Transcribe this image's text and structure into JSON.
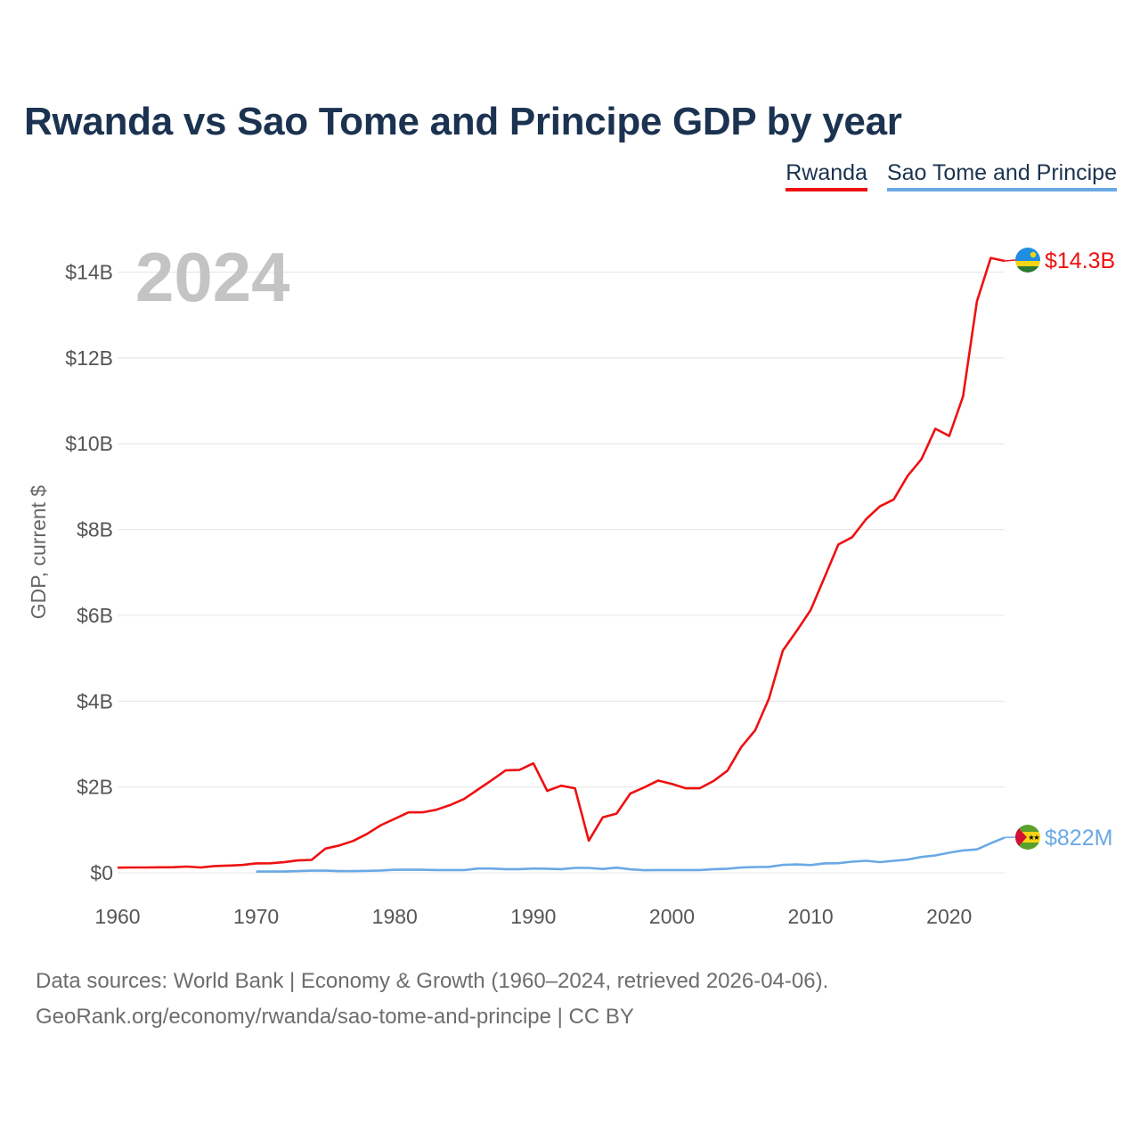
{
  "title": "Rwanda vs Sao Tome and Principe GDP by year",
  "colors": {
    "rwanda": "#ee1111",
    "stp": "#6aa9e6",
    "title": "#1b3350",
    "grid": "#e4e4e4",
    "year_label": "#c4c4c4"
  },
  "legend": [
    {
      "label": "Rwanda",
      "color": "#ee1111"
    },
    {
      "label": "Sao Tome and Principe",
      "color": "#6aa9e6"
    }
  ],
  "footer": {
    "line1": "Data sources: World Bank | Economy & Growth (1960–2024, retrieved 2026-04-06).",
    "line2": "GeoRank.org/economy/rwanda/sao-tome-and-principe | CC BY"
  },
  "chart_data": {
    "type": "line",
    "title": "Rwanda vs Sao Tome and Principe GDP by year",
    "year_label": "2024",
    "ylabel": "GDP, current $",
    "xlabel": "",
    "xlim": [
      1960,
      2024
    ],
    "ylim": [
      0,
      14.5
    ],
    "x_ticks": [
      1960,
      1970,
      1980,
      1990,
      2000,
      2010,
      2020
    ],
    "y_ticks": [
      {
        "value": 0,
        "label": "$0"
      },
      {
        "value": 2,
        "label": "$2B"
      },
      {
        "value": 4,
        "label": "$4B"
      },
      {
        "value": 6,
        "label": "$6B"
      },
      {
        "value": 8,
        "label": "$8B"
      },
      {
        "value": 10,
        "label": "$10B"
      },
      {
        "value": 12,
        "label": "$12B"
      },
      {
        "value": 14,
        "label": "$14B"
      }
    ],
    "grid": true,
    "series": [
      {
        "name": "Rwanda",
        "color": "#ee1111",
        "end_label": "$14.3B",
        "flag": "rwanda-flag-icon",
        "x": [
          1960,
          1961,
          1962,
          1963,
          1964,
          1965,
          1966,
          1967,
          1968,
          1969,
          1970,
          1971,
          1972,
          1973,
          1974,
          1975,
          1976,
          1977,
          1978,
          1979,
          1980,
          1981,
          1982,
          1983,
          1984,
          1985,
          1986,
          1987,
          1988,
          1989,
          1990,
          1991,
          1992,
          1993,
          1994,
          1995,
          1996,
          1997,
          1998,
          1999,
          2000,
          2001,
          2002,
          2003,
          2004,
          2005,
          2006,
          2007,
          2008,
          2009,
          2010,
          2011,
          2012,
          2013,
          2014,
          2015,
          2016,
          2017,
          2018,
          2019,
          2020,
          2021,
          2022,
          2023,
          2024
        ],
        "values": [
          0.12,
          0.125,
          0.125,
          0.128,
          0.13,
          0.146,
          0.125,
          0.158,
          0.168,
          0.182,
          0.22,
          0.222,
          0.246,
          0.288,
          0.3,
          0.565,
          0.637,
          0.744,
          0.907,
          1.11,
          1.26,
          1.41,
          1.41,
          1.47,
          1.58,
          1.72,
          1.94,
          2.16,
          2.39,
          2.4,
          2.55,
          1.91,
          2.03,
          1.97,
          0.75,
          1.29,
          1.38,
          1.85,
          1.99,
          2.15,
          2.07,
          1.97,
          1.97,
          2.14,
          2.38,
          2.93,
          3.32,
          4.06,
          5.18,
          5.64,
          6.12,
          6.88,
          7.65,
          7.82,
          8.24,
          8.54,
          8.7,
          9.25,
          9.64,
          10.35,
          10.18,
          11.1,
          13.32,
          14.33,
          14.26
        ]
      },
      {
        "name": "Sao Tome and Principe",
        "color": "#6aa9e6",
        "end_label": "$822M",
        "flag": "sao-tome-flag-icon",
        "x": [
          1970,
          1971,
          1972,
          1973,
          1974,
          1975,
          1976,
          1977,
          1978,
          1979,
          1980,
          1981,
          1982,
          1983,
          1984,
          1985,
          1986,
          1987,
          1988,
          1989,
          1990,
          1991,
          1992,
          1993,
          1994,
          1995,
          1996,
          1997,
          1998,
          1999,
          2000,
          2001,
          2002,
          2003,
          2004,
          2005,
          2006,
          2007,
          2008,
          2009,
          2010,
          2011,
          2012,
          2013,
          2014,
          2015,
          2016,
          2017,
          2018,
          2019,
          2020,
          2021,
          2022,
          2023,
          2024
        ],
        "values": [
          0.03,
          0.03,
          0.03,
          0.04,
          0.05,
          0.05,
          0.04,
          0.04,
          0.045,
          0.055,
          0.07,
          0.07,
          0.07,
          0.065,
          0.065,
          0.065,
          0.1,
          0.1,
          0.085,
          0.085,
          0.1,
          0.095,
          0.085,
          0.115,
          0.115,
          0.09,
          0.12,
          0.08,
          0.06,
          0.065,
          0.065,
          0.065,
          0.065,
          0.085,
          0.095,
          0.125,
          0.135,
          0.14,
          0.185,
          0.195,
          0.18,
          0.22,
          0.225,
          0.26,
          0.28,
          0.25,
          0.28,
          0.31,
          0.37,
          0.405,
          0.47,
          0.52,
          0.545,
          0.69,
          0.822
        ]
      }
    ]
  }
}
